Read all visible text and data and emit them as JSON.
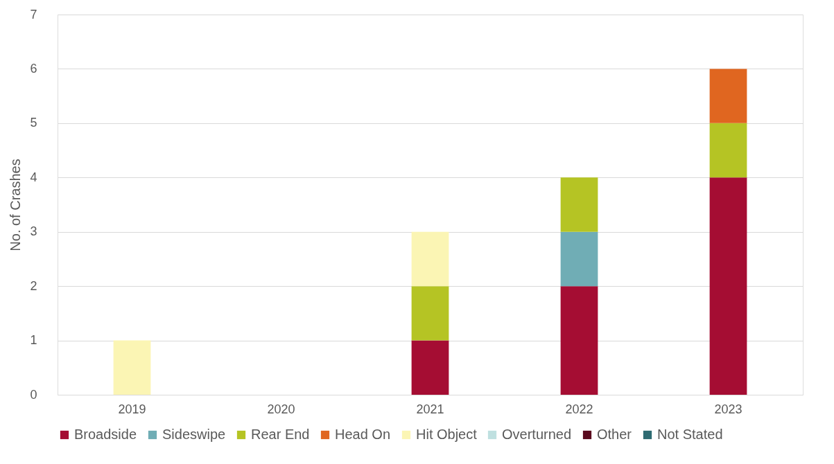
{
  "chart_data": {
    "type": "bar",
    "stacked": true,
    "ylabel": "No. of Crashes",
    "categories": [
      "2019",
      "2020",
      "2021",
      "2022",
      "2023"
    ],
    "series": [
      {
        "name": "Broadside",
        "color": "#a50d33",
        "values": [
          0,
          0,
          1,
          2,
          4
        ]
      },
      {
        "name": "Sideswipe",
        "color": "#70adb5",
        "values": [
          0,
          0,
          0,
          1,
          0
        ]
      },
      {
        "name": "Rear End",
        "color": "#b5c424",
        "values": [
          0,
          0,
          1,
          1,
          1
        ]
      },
      {
        "name": "Head On",
        "color": "#e06620",
        "values": [
          0,
          0,
          0,
          0,
          1
        ]
      },
      {
        "name": "Hit Object",
        "color": "#fbf5b4",
        "values": [
          1,
          0,
          1,
          0,
          0
        ]
      },
      {
        "name": "Overturned",
        "color": "#bfe0e0",
        "values": [
          0,
          0,
          0,
          0,
          0
        ]
      },
      {
        "name": "Other",
        "color": "#5a0a1e",
        "values": [
          0,
          0,
          0,
          0,
          0
        ]
      },
      {
        "name": "Not Stated",
        "color": "#2e6b72",
        "values": [
          0,
          0,
          0,
          0,
          0
        ]
      }
    ],
    "ylim": [
      0,
      7
    ],
    "yticks": [
      0,
      1,
      2,
      3,
      4,
      5,
      6,
      7
    ],
    "grid": "y",
    "legend": "bottom"
  }
}
